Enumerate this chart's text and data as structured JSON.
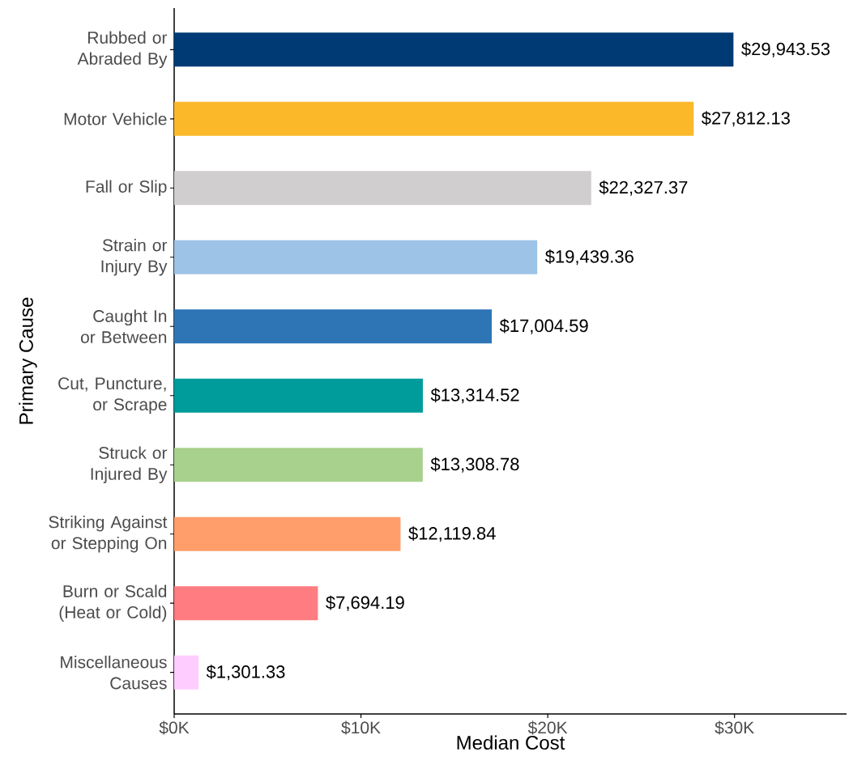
{
  "chart_data": {
    "type": "bar",
    "orientation": "horizontal",
    "xlabel": "Median Cost",
    "ylabel": "Primary Cause",
    "categories": [
      "Rubbed or Abraded By",
      "Motor Vehicle",
      "Fall or Slip",
      "Strain or Injury By",
      "Caught In or Between",
      "Cut, Puncture, or Scrape",
      "Struck or Injured By",
      "Striking Against or Stepping On",
      "Burn or Scald (Heat or Cold)",
      "Miscellaneous Causes"
    ],
    "values": [
      29943.53,
      27812.13,
      22327.37,
      19439.36,
      17004.59,
      13314.52,
      13308.78,
      12119.84,
      7694.19,
      1301.33
    ],
    "colors": [
      "#003a75",
      "#fbb829",
      "#d0cecf",
      "#9dc3e6",
      "#2e75b6",
      "#009b9b",
      "#a9d18e",
      "#ff9e6a",
      "#ff7c80",
      "#ffccff"
    ],
    "value_labels": [
      "$29,943.53",
      "$27,812.13",
      "$22,327.37",
      "$19,439.36",
      "$17,004.59",
      "$13,314.52",
      "$13,308.78",
      "$12,119.84",
      "$7,694.19",
      "$1,301.33"
    ],
    "xlim": [
      0,
      36000
    ],
    "xticks": [
      {
        "value": 0,
        "label": "$0K"
      },
      {
        "value": 10000,
        "label": "$10K"
      },
      {
        "value": 20000,
        "label": "$20K"
      },
      {
        "value": 30000,
        "label": "$30K"
      }
    ]
  }
}
